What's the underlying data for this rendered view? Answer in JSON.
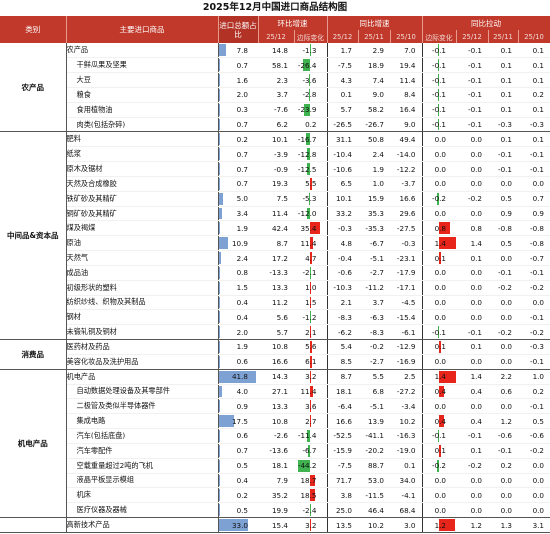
{
  "title": "2025年12月中国进口商品结构图",
  "headers": {
    "category": "类别",
    "product": "主要进口商品",
    "share": "进口总额占比",
    "yoy_rate": "环比增速",
    "yoy_growth": "同比增速",
    "yoy_pull": "同比拉动",
    "col_2512": "25/12",
    "col_change": "边际变化",
    "col_2511": "25/11",
    "col_2510": "25/10"
  },
  "colors": {
    "header_bg": "#c0392b",
    "share_bar": "#7ea1d4",
    "positive_bar": "#e8251b",
    "negative_bar": "#3fb34f"
  },
  "scales": {
    "share_max": 44,
    "mom_max": 60,
    "marg_max": 60,
    "pull_max": 1.3
  },
  "rows": [
    {
      "cat": "农产品",
      "name": "农产品",
      "share": "7.8",
      "mom": "14.8",
      "momc": "-1.3",
      "yoy": "1.7",
      "yoy1": "2.9",
      "yoy2": "7.0",
      "pull": "-0.1",
      "pull1": "0.1",
      "pull2": "0.1",
      "sub": false
    },
    {
      "cat": "农产品",
      "name": "干鲜瓜果及坚果",
      "share": "0.7",
      "mom": "58.1",
      "momc": "-26.4",
      "yoy": "-7.5",
      "yoy1": "18.9",
      "yoy2": "19.4",
      "pull": "-0.1",
      "pull1": "0.1",
      "pull2": "0.1",
      "sub": true
    },
    {
      "cat": "农产品",
      "name": "大豆",
      "share": "1.6",
      "mom": "2.3",
      "momc": "-3.6",
      "yoy": "4.3",
      "yoy1": "7.4",
      "yoy2": "11.4",
      "pull": "-0.1",
      "pull1": "0.1",
      "pull2": "0.1",
      "sub": true
    },
    {
      "cat": "农产品",
      "name": "粮食",
      "share": "2.0",
      "mom": "3.7",
      "momc": "-2.8",
      "yoy": "0.1",
      "yoy1": "9.0",
      "yoy2": "8.4",
      "pull": "-0.1",
      "pull1": "0.1",
      "pull2": "0.2",
      "sub": true
    },
    {
      "cat": "农产品",
      "name": "食用植物油",
      "share": "0.3",
      "mom": "-7.6",
      "momc": "-23.9",
      "yoy": "5.7",
      "yoy1": "58.2",
      "yoy2": "16.4",
      "pull": "-0.1",
      "pull1": "0.1",
      "pull2": "0.1",
      "sub": true
    },
    {
      "cat": "农产品",
      "name": "肉类(包括杂碎)",
      "share": "0.7",
      "mom": "6.2",
      "momc": "0.2",
      "yoy": "-26.5",
      "yoy1": "-26.7",
      "yoy2": "9.0",
      "pull": "-0.1",
      "pull1": "-0.3",
      "pull2": "-0.3",
      "sub": true
    },
    {
      "cat": "中间品&资本品",
      "name": "肥料",
      "share": "0.2",
      "mom": "10.1",
      "momc": "-16.7",
      "yoy": "31.1",
      "yoy1": "50.8",
      "yoy2": "49.4",
      "pull": "0.0",
      "pull1": "0.1",
      "pull2": "0.1",
      "sub": false
    },
    {
      "cat": "中间品&资本品",
      "name": "纸浆",
      "share": "0.7",
      "mom": "-3.9",
      "momc": "-12.8",
      "yoy": "-10.4",
      "yoy1": "2.4",
      "yoy2": "-14.0",
      "pull": "0.0",
      "pull1": "-0.1",
      "pull2": "-0.1",
      "sub": false
    },
    {
      "cat": "中间品&资本品",
      "name": "原木及锯材",
      "share": "0.7",
      "mom": "-0.9",
      "momc": "-12.5",
      "yoy": "-10.6",
      "yoy1": "1.9",
      "yoy2": "-12.2",
      "pull": "0.0",
      "pull1": "-0.1",
      "pull2": "-0.1",
      "sub": false
    },
    {
      "cat": "中间品&资本品",
      "name": "天然及合成橡胶",
      "share": "0.7",
      "mom": "19.3",
      "momc": "5.5",
      "yoy": "6.5",
      "yoy1": "1.0",
      "yoy2": "-3.7",
      "pull": "0.0",
      "pull1": "0.0",
      "pull2": "0.0",
      "sub": false
    },
    {
      "cat": "中间品&资本品",
      "name": "铁矿砂及其精矿",
      "share": "5.0",
      "mom": "7.5",
      "momc": "-5.3",
      "yoy": "10.1",
      "yoy1": "15.9",
      "yoy2": "16.6",
      "pull": "-0.2",
      "pull1": "0.5",
      "pull2": "0.7",
      "sub": false
    },
    {
      "cat": "中间品&资本品",
      "name": "铜矿砂及其精矿",
      "share": "3.4",
      "mom": "11.4",
      "momc": "-12.0",
      "yoy": "33.2",
      "yoy1": "35.3",
      "yoy2": "29.6",
      "pull": "0.0",
      "pull1": "0.9",
      "pull2": "0.9",
      "sub": false
    },
    {
      "cat": "中间品&资本品",
      "name": "煤及褐煤",
      "share": "1.9",
      "mom": "42.4",
      "momc": "35.4",
      "yoy": "-0.3",
      "yoy1": "-35.3",
      "yoy2": "-27.5",
      "pull": "0.8",
      "pull1": "-0.8",
      "pull2": "-0.8",
      "sub": false
    },
    {
      "cat": "中间品&资本品",
      "name": "原油",
      "share": "10.9",
      "mom": "8.7",
      "momc": "11.4",
      "yoy": "4.8",
      "yoy1": "-6.7",
      "yoy2": "-0.3",
      "pull": "1.4",
      "pull1": "0.5",
      "pull2": "-0.8",
      "sub": false
    },
    {
      "cat": "中间品&资本品",
      "name": "天然气",
      "share": "2.4",
      "mom": "17.2",
      "momc": "4.7",
      "yoy": "-0.4",
      "yoy1": "-5.1",
      "yoy2": "-23.1",
      "pull": "0.1",
      "pull1": "0.0",
      "pull2": "-0.7",
      "sub": false
    },
    {
      "cat": "中间品&资本品",
      "name": "成品油",
      "share": "0.8",
      "mom": "-13.3",
      "momc": "-2.1",
      "yoy": "-0.6",
      "yoy1": "-2.7",
      "yoy2": "-17.9",
      "pull": "0.0",
      "pull1": "-0.1",
      "pull2": "-0.1",
      "sub": false
    },
    {
      "cat": "中间品&资本品",
      "name": "初级形状的塑料",
      "share": "1.5",
      "mom": "13.3",
      "momc": "1.0",
      "yoy": "-10.3",
      "yoy1": "-11.2",
      "yoy2": "-17.1",
      "pull": "0.0",
      "pull1": "-0.2",
      "pull2": "-0.2",
      "sub": false
    },
    {
      "cat": "中间品&资本品",
      "name": "纺织纱线、织物及其制品",
      "share": "0.4",
      "mom": "11.2",
      "momc": "1.5",
      "yoy": "2.1",
      "yoy1": "3.7",
      "yoy2": "-4.5",
      "pull": "0.0",
      "pull1": "0.0",
      "pull2": "0.0",
      "sub": false
    },
    {
      "cat": "中间品&资本品",
      "name": "钢材",
      "share": "0.4",
      "mom": "5.6",
      "momc": "-1.2",
      "yoy": "-8.3",
      "yoy1": "-6.3",
      "yoy2": "-15.4",
      "pull": "0.0",
      "pull1": "0.0",
      "pull2": "-0.1",
      "sub": false
    },
    {
      "cat": "中间品&资本品",
      "name": "未锻轧铜及铜材",
      "share": "2.0",
      "mom": "5.7",
      "momc": "2.1",
      "yoy": "-6.2",
      "yoy1": "-8.3",
      "yoy2": "-6.1",
      "pull": "-0.1",
      "pull1": "-0.2",
      "pull2": "-0.2",
      "sub": false
    },
    {
      "cat": "消费品",
      "name": "医药材及药品",
      "share": "1.9",
      "mom": "10.8",
      "momc": "5.6",
      "yoy": "5.4",
      "yoy1": "-0.2",
      "yoy2": "-12.9",
      "pull": "0.1",
      "pull1": "0.0",
      "pull2": "-0.3",
      "sub": false
    },
    {
      "cat": "消费品",
      "name": "美容化妆品及洗护用品",
      "share": "0.6",
      "mom": "16.6",
      "momc": "6.1",
      "yoy": "8.5",
      "yoy1": "-2.7",
      "yoy2": "-16.9",
      "pull": "0.0",
      "pull1": "0.0",
      "pull2": "-0.1",
      "sub": false
    },
    {
      "cat": "机电产品",
      "name": "机电产品",
      "share": "41.8",
      "mom": "14.3",
      "momc": "3.2",
      "yoy": "8.7",
      "yoy1": "5.5",
      "yoy2": "2.5",
      "pull": "1.4",
      "pull1": "2.2",
      "pull2": "1.0",
      "sub": false
    },
    {
      "cat": "机电产品",
      "name": "自动数据处理设备及其零部件",
      "share": "4.0",
      "mom": "27.1",
      "momc": "11.4",
      "yoy": "18.1",
      "yoy1": "6.8",
      "yoy2": "-27.2",
      "pull": "0.4",
      "pull1": "0.6",
      "pull2": "0.2",
      "sub": true
    },
    {
      "cat": "机电产品",
      "name": "二极管及类似半导体器件",
      "share": "0.9",
      "mom": "13.3",
      "momc": "3.6",
      "yoy": "-6.4",
      "yoy1": "-5.1",
      "yoy2": "-3.4",
      "pull": "0.0",
      "pull1": "0.0",
      "pull2": "-0.1",
      "sub": true
    },
    {
      "cat": "机电产品",
      "name": "集成电路",
      "share": "17.5",
      "mom": "10.8",
      "momc": "2.7",
      "yoy": "16.6",
      "yoy1": "13.9",
      "yoy2": "10.2",
      "pull": "0.4",
      "pull1": "1.2",
      "pull2": "0.5",
      "sub": true
    },
    {
      "cat": "机电产品",
      "name": "汽车(包括底盘)",
      "share": "0.6",
      "mom": "-2.6",
      "momc": "-11.4",
      "yoy": "-52.5",
      "yoy1": "-41.1",
      "yoy2": "-16.3",
      "pull": "-0.1",
      "pull1": "-0.6",
      "pull2": "-0.6",
      "sub": true
    },
    {
      "cat": "机电产品",
      "name": "汽车零配件",
      "share": "0.7",
      "mom": "-13.6",
      "momc": "-6.7",
      "yoy": "-15.9",
      "yoy1": "-20.2",
      "yoy2": "-19.0",
      "pull": "0.1",
      "pull1": "-0.1",
      "pull2": "-0.2",
      "sub": true
    },
    {
      "cat": "机电产品",
      "name": "空载重量超过2吨的飞机",
      "share": "0.5",
      "mom": "18.1",
      "momc": "-44.2",
      "yoy": "-7.5",
      "yoy1": "88.7",
      "yoy2": "0.1",
      "pull": "-0.2",
      "pull1": "0.2",
      "pull2": "0.0",
      "sub": true
    },
    {
      "cat": "机电产品",
      "name": "液晶平板显示模组",
      "share": "0.4",
      "mom": "7.9",
      "momc": "18.7",
      "yoy": "71.7",
      "yoy1": "53.0",
      "yoy2": "34.0",
      "pull": "0.0",
      "pull1": "0.0",
      "pull2": "0.0",
      "sub": true
    },
    {
      "cat": "机电产品",
      "name": "机床",
      "share": "0.2",
      "mom": "35.2",
      "momc": "18.5",
      "yoy": "3.8",
      "yoy1": "-11.5",
      "yoy2": "-4.1",
      "pull": "0.0",
      "pull1": "0.0",
      "pull2": "0.0",
      "sub": true
    },
    {
      "cat": "机电产品",
      "name": "医疗仪器及器械",
      "share": "0.5",
      "mom": "19.9",
      "momc": "-2.4",
      "yoy": "25.0",
      "yoy1": "46.4",
      "yoy2": "68.4",
      "pull": "0.0",
      "pull1": "0.0",
      "pull2": "0.0",
      "sub": true
    },
    {
      "cat": "",
      "name": "高新技术产品",
      "share": "33.0",
      "mom": "15.4",
      "momc": "3.2",
      "yoy": "13.5",
      "yoy1": "10.2",
      "yoy2": "3.0",
      "pull": "1.2",
      "pull1": "1.3",
      "pull2": "3.1",
      "sub": false
    }
  ]
}
